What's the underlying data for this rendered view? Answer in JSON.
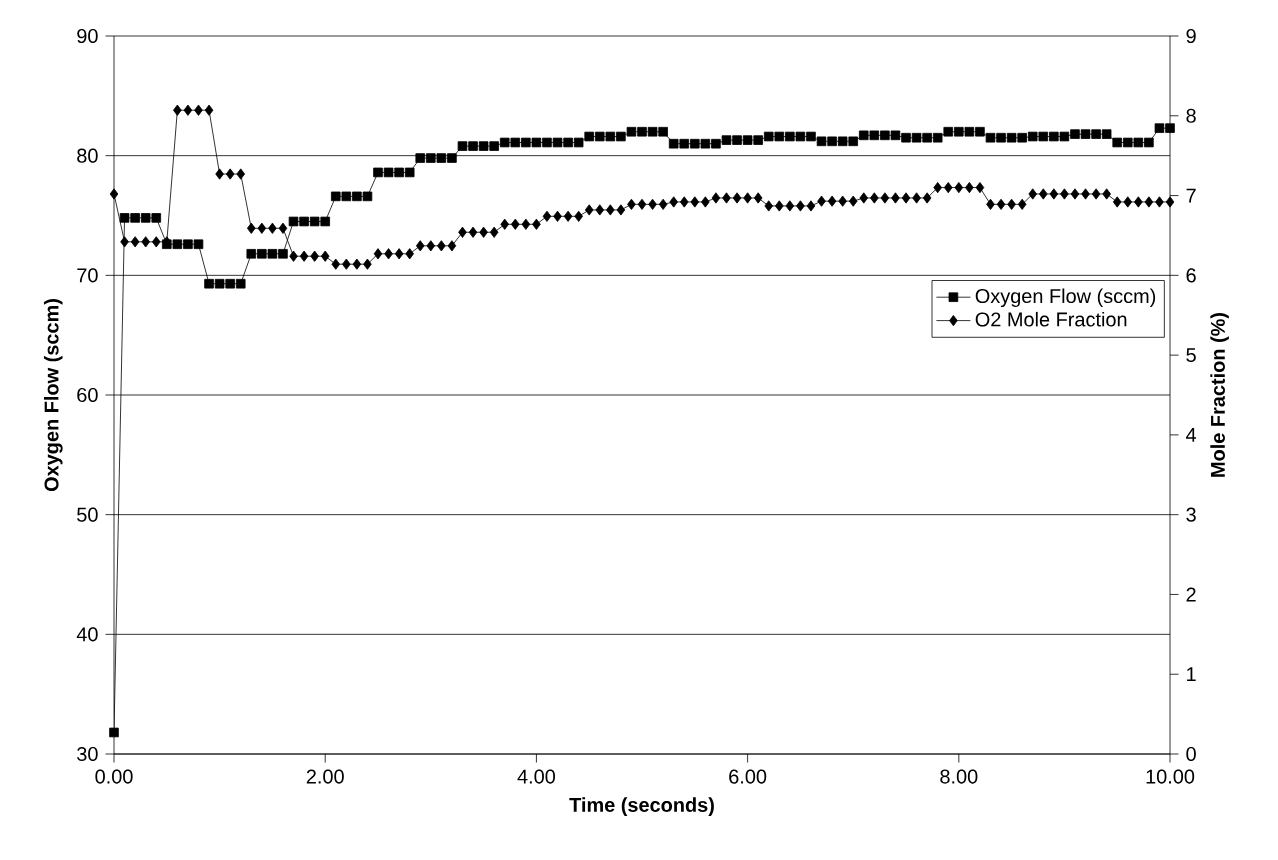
{
  "chart_data": {
    "type": "line",
    "xlabel": "Time (seconds)",
    "ylabel": "Oxygen Flow (sccm)",
    "y2label": "Mole Fraction (%)",
    "x": [
      0,
      0.1,
      0.2,
      0.3,
      0.4,
      0.5,
      0.6,
      0.7,
      0.8,
      0.9,
      1.0,
      1.1,
      1.2,
      1.3,
      1.4,
      1.5,
      1.6,
      1.7,
      1.8,
      1.9,
      2.0,
      2.1,
      2.2,
      2.3,
      2.4,
      2.5,
      2.6,
      2.7,
      2.8,
      2.9,
      3.0,
      3.1,
      3.2,
      3.3,
      3.4,
      3.5,
      3.6,
      3.7,
      3.8,
      3.9,
      4.0,
      4.1,
      4.2,
      4.3,
      4.4,
      4.5,
      4.6,
      4.7,
      4.8,
      4.9,
      5.0,
      5.1,
      5.2,
      5.3,
      5.4,
      5.5,
      5.6,
      5.7,
      5.8,
      5.9,
      6.0,
      6.1,
      6.2,
      6.3,
      6.4,
      6.5,
      6.6,
      6.7,
      6.8,
      6.9,
      7.0,
      7.1,
      7.2,
      7.3,
      7.4,
      7.5,
      7.6,
      7.7,
      7.8,
      7.9,
      8.0,
      8.1,
      8.2,
      8.3,
      8.4,
      8.5,
      8.6,
      8.7,
      8.8,
      8.9,
      9.0,
      9.1,
      9.2,
      9.3,
      9.4,
      9.5,
      9.6,
      9.7,
      9.8,
      9.9,
      10.0
    ],
    "series": [
      {
        "name": "Oxygen Flow (sccm)",
        "color": "#000000",
        "marker": "square",
        "values": [
          31.8,
          74.8,
          74.8,
          74.8,
          74.8,
          72.6,
          72.6,
          72.6,
          72.6,
          69.3,
          69.3,
          69.3,
          69.3,
          71.8,
          71.8,
          71.8,
          71.8,
          74.5,
          74.5,
          74.5,
          74.5,
          76.6,
          76.6,
          76.6,
          76.6,
          78.6,
          78.6,
          78.6,
          78.6,
          79.8,
          79.8,
          79.8,
          79.8,
          80.8,
          80.8,
          80.8,
          80.8,
          81.1,
          81.1,
          81.1,
          81.1,
          81.1,
          81.1,
          81.1,
          81.1,
          81.6,
          81.6,
          81.6,
          81.6,
          82.0,
          82.0,
          82.0,
          82.0,
          81.0,
          81.0,
          81.0,
          81.0,
          81.0,
          81.3,
          81.3,
          81.3,
          81.3,
          81.6,
          81.6,
          81.6,
          81.6,
          81.6,
          81.2,
          81.2,
          81.2,
          81.2,
          81.7,
          81.7,
          81.7,
          81.7,
          81.5,
          81.5,
          81.5,
          81.5,
          82.0,
          82.0,
          82.0,
          82.0,
          81.5,
          81.5,
          81.5,
          81.5,
          81.6,
          81.6,
          81.6,
          81.6,
          81.8,
          81.8,
          81.8,
          81.8,
          81.1,
          81.1,
          81.1,
          81.1,
          82.3,
          82.3
        ]
      },
      {
        "name": "O2 Mole Fraction",
        "color": "#000000",
        "marker": "diamond",
        "axis": "y2",
        "values": [
          7.02,
          6.42,
          6.42,
          6.42,
          6.42,
          6.42,
          8.07,
          8.07,
          8.07,
          8.07,
          7.27,
          7.27,
          7.27,
          6.59,
          6.59,
          6.59,
          6.59,
          6.24,
          6.24,
          6.24,
          6.24,
          6.14,
          6.14,
          6.14,
          6.14,
          6.27,
          6.27,
          6.27,
          6.27,
          6.37,
          6.37,
          6.37,
          6.37,
          6.54,
          6.54,
          6.54,
          6.54,
          6.64,
          6.64,
          6.64,
          6.64,
          6.74,
          6.74,
          6.74,
          6.74,
          6.82,
          6.82,
          6.82,
          6.82,
          6.89,
          6.89,
          6.89,
          6.89,
          6.92,
          6.92,
          6.92,
          6.92,
          6.97,
          6.97,
          6.97,
          6.97,
          6.97,
          6.87,
          6.87,
          6.87,
          6.87,
          6.87,
          6.93,
          6.93,
          6.93,
          6.93,
          6.97,
          6.97,
          6.97,
          6.97,
          6.97,
          6.97,
          6.97,
          7.1,
          7.1,
          7.1,
          7.1,
          7.1,
          6.89,
          6.89,
          6.89,
          6.89,
          7.02,
          7.02,
          7.02,
          7.02,
          7.02,
          7.02,
          7.02,
          7.02,
          6.92,
          6.92,
          6.92,
          6.92,
          6.92,
          6.92
        ]
      }
    ],
    "xlim": [
      0,
      10
    ],
    "xticks": [
      {
        "value": 0,
        "label": "0.00"
      },
      {
        "value": 2,
        "label": "2.00"
      },
      {
        "value": 4,
        "label": "4.00"
      },
      {
        "value": 6,
        "label": "6.00"
      },
      {
        "value": 8,
        "label": "8.00"
      },
      {
        "value": 10,
        "label": "10.00"
      }
    ],
    "ylim": [
      30,
      90
    ],
    "yticks": [
      30,
      40,
      50,
      60,
      70,
      80,
      90
    ],
    "y2lim": [
      0,
      9
    ],
    "y2ticks": [
      0,
      1,
      2,
      3,
      4,
      5,
      6,
      7,
      8,
      9
    ],
    "grid": "y",
    "legend": "right",
    "line_style": "solid"
  }
}
